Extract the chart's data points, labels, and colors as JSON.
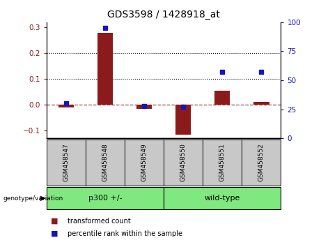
{
  "title": "GDS3598 / 1428918_at",
  "samples": [
    "GSM458547",
    "GSM458548",
    "GSM458549",
    "GSM458550",
    "GSM458551",
    "GSM458552"
  ],
  "red_values": [
    -0.01,
    0.28,
    -0.015,
    -0.115,
    0.055,
    0.01
  ],
  "blue_values_pct": [
    30,
    95,
    28,
    27,
    57,
    57
  ],
  "ylim_left": [
    -0.13,
    0.32
  ],
  "ylim_right": [
    0,
    100
  ],
  "yticks_left": [
    -0.1,
    0.0,
    0.1,
    0.2,
    0.3
  ],
  "yticks_right": [
    0,
    25,
    50,
    75,
    100
  ],
  "hlines": [
    0.1,
    0.2
  ],
  "bar_color": "#8B1A1A",
  "dot_color": "#1515BB",
  "legend_items": [
    "transformed count",
    "percentile rank within the sample"
  ],
  "background_color": "#ffffff",
  "tick_label_bg": "#c8c8c8",
  "group_color": "#7FE87F",
  "group_label_prefix": "genotype/variation",
  "groups": [
    {
      "label": "p300 +/-",
      "start": 0,
      "end": 2
    },
    {
      "label": "wild-type",
      "start": 3,
      "end": 5
    }
  ],
  "bar_width": 0.4
}
